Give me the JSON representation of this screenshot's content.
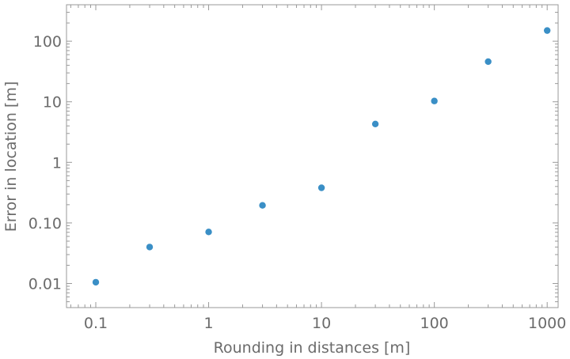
{
  "chart_data": {
    "type": "scatter",
    "xlabel": "Rounding in distances [m]",
    "ylabel": "Error in location [m]",
    "x_scale": "log",
    "y_scale": "log",
    "xlim": [
      0.055,
      1250
    ],
    "ylim": [
      0.004,
      400
    ],
    "x_ticks": [
      {
        "value": 0.1,
        "label": "0.1"
      },
      {
        "value": 1,
        "label": "1"
      },
      {
        "value": 10,
        "label": "10"
      },
      {
        "value": 100,
        "label": "100"
      },
      {
        "value": 1000,
        "label": "1000"
      }
    ],
    "y_ticks": [
      {
        "value": 0.01,
        "label": "0.01"
      },
      {
        "value": 0.1,
        "label": "0.10"
      },
      {
        "value": 1,
        "label": "1"
      },
      {
        "value": 10,
        "label": "10"
      },
      {
        "value": 100,
        "label": "100"
      }
    ],
    "marker_color": "#3a8fc6",
    "grid": false,
    "series": [
      {
        "points": [
          {
            "x": 0.1,
            "y": 0.0105
          },
          {
            "x": 0.3,
            "y": 0.04
          },
          {
            "x": 1,
            "y": 0.071
          },
          {
            "x": 3,
            "y": 0.195
          },
          {
            "x": 10,
            "y": 0.38
          },
          {
            "x": 30,
            "y": 4.3
          },
          {
            "x": 100,
            "y": 10.3
          },
          {
            "x": 300,
            "y": 46
          },
          {
            "x": 1000,
            "y": 150
          }
        ]
      }
    ]
  }
}
